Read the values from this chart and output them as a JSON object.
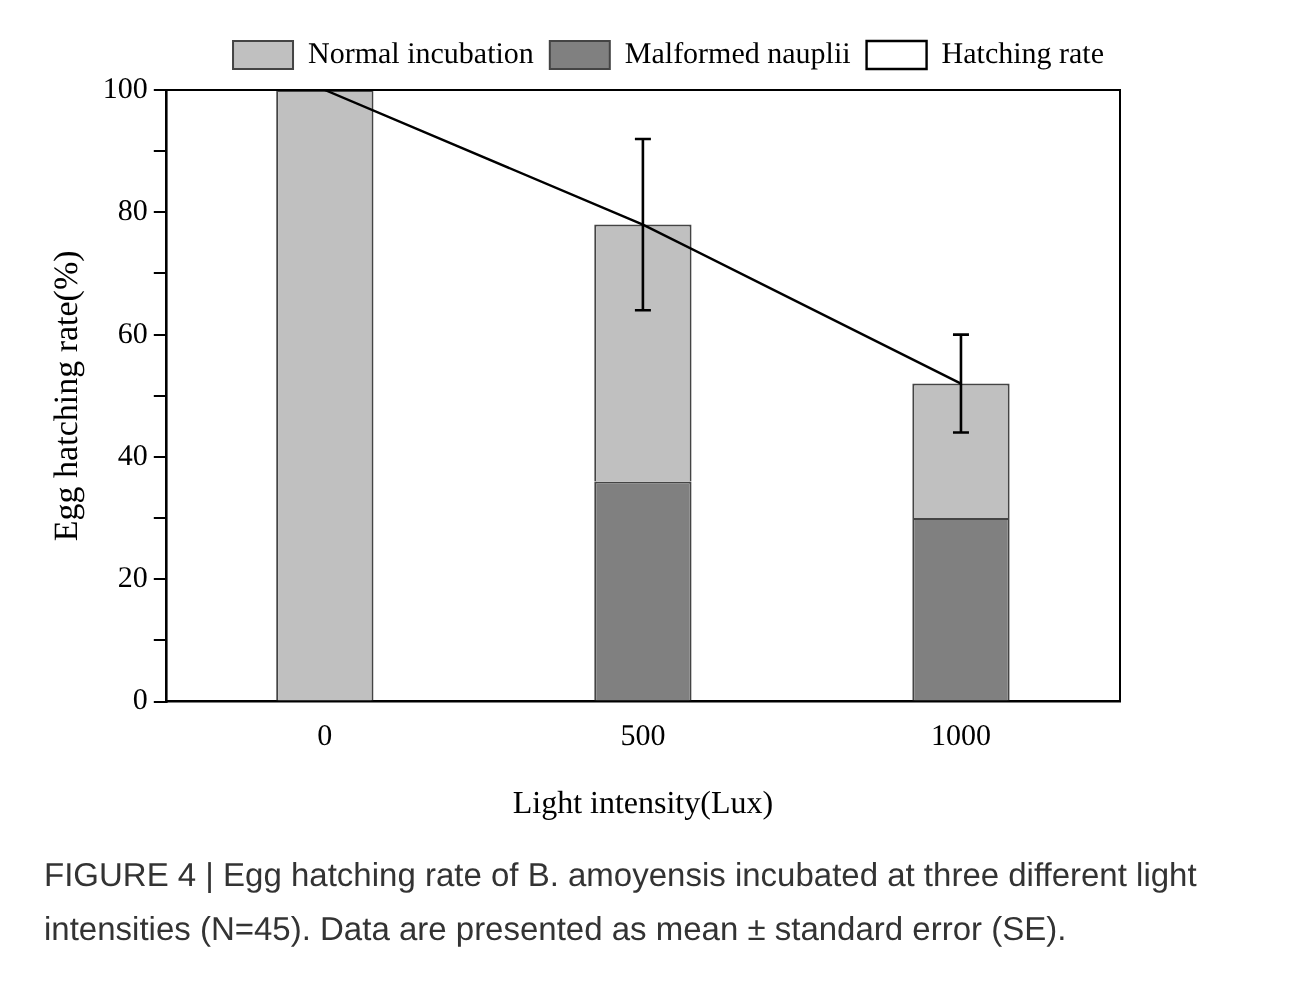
{
  "chart_data": {
    "type": "bar",
    "stacked": true,
    "xlabel": "Light intensity(Lux)",
    "ylabel": "Egg hatching rate(%)",
    "categories": [
      "0",
      "500",
      "1000"
    ],
    "series": [
      {
        "name": "Malformed nauplii",
        "color": "#808080",
        "values": [
          0,
          36,
          30
        ]
      },
      {
        "name": "Normal incubation",
        "color": "#c0c0c0",
        "values": [
          100,
          42,
          22
        ]
      },
      {
        "name": "Hatching rate",
        "type": "line",
        "color": "#000000",
        "values": [
          100,
          78,
          52
        ],
        "errors": [
          null,
          14,
          8
        ]
      }
    ],
    "ylim": [
      0,
      100
    ],
    "yticks": [
      0,
      {
        "value": 10,
        "label": null
      },
      20,
      {
        "value": 30,
        "label": null
      },
      40,
      {
        "value": 50,
        "label": null
      },
      60,
      {
        "value": 70,
        "label": null
      },
      80,
      {
        "value": 90,
        "label": null
      },
      100
    ],
    "grid": false,
    "legend": "top",
    "marker": "none",
    "annotations": [
      "FIGURE 4 | Egg hatching rate of B. amoyensis incubated at three different light intensities (N=45). Data are presented as mean ± standard error  (SE)."
    ]
  }
}
